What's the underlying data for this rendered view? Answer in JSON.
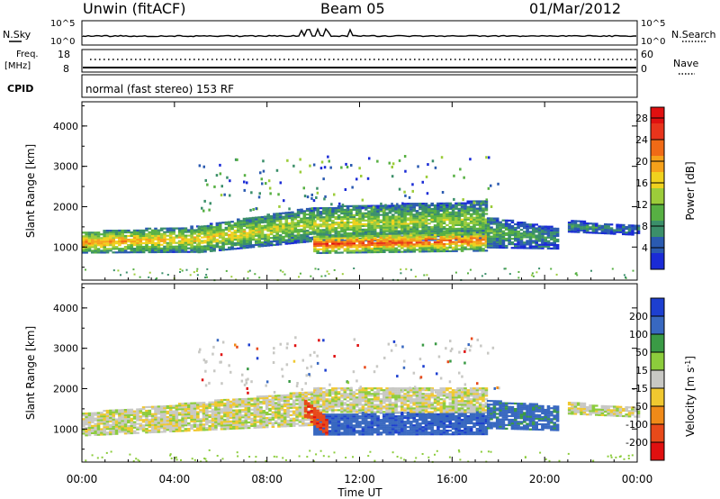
{
  "header": {
    "station": "Unwin (fitACF)",
    "beam": "Beam 05",
    "date": "01/Mar/2012"
  },
  "noise_panel": {
    "left_label": "N.Sky",
    "right_label": "N.Search",
    "left_ticks": [
      "10^5",
      "10^0"
    ],
    "right_ticks": [
      "10^5",
      "10^0"
    ]
  },
  "freq_panel": {
    "left_label_line1": "Freq.",
    "left_label_line2": "[MHz]",
    "right_label": "Nave",
    "left_ticks": [
      "18",
      "8"
    ],
    "right_ticks": [
      "60",
      "0"
    ]
  },
  "cpid_panel": {
    "label": "CPID",
    "text": "normal (fast stereo) 153 RF"
  },
  "x_axis": {
    "label": "Time UT",
    "ticks": [
      "00:00",
      "04:00",
      "08:00",
      "12:00",
      "16:00",
      "20:00",
      "00:00"
    ],
    "range_hours": [
      0,
      24
    ]
  },
  "chart_data": [
    {
      "type": "heatmap",
      "title": "",
      "xlabel": "Time UT",
      "ylabel": "Slant Range [km]",
      "xlim_hours": [
        0,
        24
      ],
      "ylim": [
        180,
        4600
      ],
      "y_ticks": [
        1000,
        2000,
        3000,
        4000
      ],
      "colorbar": {
        "label": "Power [dB]",
        "ticks": [
          "4",
          "8",
          "12",
          "16",
          "20",
          "24",
          "28"
        ],
        "range": [
          0,
          30
        ],
        "colors": [
          "#1a2bd6",
          "#2a5ab0",
          "#3b8f6a",
          "#57b043",
          "#9ccc3a",
          "#f0d21e",
          "#f6a11a",
          "#f06a16",
          "#e8341c",
          "#e01010"
        ]
      },
      "regions": [
        {
          "start_h": 0.0,
          "end_h": 5.0,
          "range_center": [
            1100,
            1180
          ],
          "half_width": [
            260,
            320
          ],
          "level": [
            21,
            17
          ]
        },
        {
          "start_h": 5.0,
          "end_h": 10.0,
          "range_center": [
            1180,
            1550
          ],
          "half_width": [
            330,
            420
          ],
          "level": [
            18,
            14
          ]
        },
        {
          "start_h": 10.0,
          "end_h": 17.5,
          "range_center": [
            1550,
            1650
          ],
          "half_width": [
            420,
            480
          ],
          "level": [
            15,
            13
          ]
        },
        {
          "start_h": 10.0,
          "end_h": 17.5,
          "range_center": [
            1050,
            1150
          ],
          "half_width": [
            220,
            260
          ],
          "level": [
            26,
            23
          ]
        },
        {
          "start_h": 17.5,
          "end_h": 20.5,
          "range_center": [
            1350,
            1200
          ],
          "half_width": [
            380,
            260
          ],
          "level": [
            11,
            8
          ]
        },
        {
          "start_h": 21.0,
          "end_h": 24.0,
          "range_center": [
            1500,
            1400
          ],
          "half_width": [
            140,
            120
          ],
          "level": [
            8,
            6
          ]
        }
      ]
    },
    {
      "type": "heatmap",
      "title": "",
      "xlabel": "Time UT",
      "ylabel": "Slant Range [km]",
      "xlim_hours": [
        0,
        24
      ],
      "ylim": [
        180,
        4600
      ],
      "y_ticks": [
        1000,
        2000,
        3000,
        4000
      ],
      "colorbar": {
        "label": "Velocity [m s-1]",
        "ticks": [
          "200",
          "100",
          "50",
          "15",
          "-15",
          "-50",
          "-100",
          "-200"
        ],
        "colors": [
          "#1d3fd0",
          "#3868c0",
          "#3a9a45",
          "#8ccc3c",
          "#c8c8c4",
          "#f0c830",
          "#f08a18",
          "#e84a1a",
          "#e01010"
        ]
      },
      "regions": [
        {
          "start_h": 0.0,
          "end_h": 10.0,
          "range_center": [
            1100,
            1500
          ],
          "half_width": [
            280,
            420
          ],
          "velocity": 0
        },
        {
          "start_h": 10.0,
          "end_h": 17.5,
          "range_center": [
            1100,
            1150
          ],
          "half_width": [
            260,
            300
          ],
          "velocity": 180
        },
        {
          "start_h": 10.0,
          "end_h": 17.5,
          "range_center": [
            1700,
            1700
          ],
          "half_width": [
            300,
            300
          ],
          "velocity": 0
        },
        {
          "start_h": 9.6,
          "end_h": 10.6,
          "range_center": [
            1500,
            1000
          ],
          "half_width": [
            220,
            200
          ],
          "velocity": -180
        },
        {
          "start_h": 17.5,
          "end_h": 20.5,
          "range_center": [
            1350,
            1250
          ],
          "half_width": [
            350,
            300
          ],
          "velocity": 120
        },
        {
          "start_h": 21.0,
          "end_h": 24.0,
          "range_center": [
            1500,
            1400
          ],
          "half_width": [
            140,
            120
          ],
          "velocity": 0
        }
      ]
    }
  ]
}
